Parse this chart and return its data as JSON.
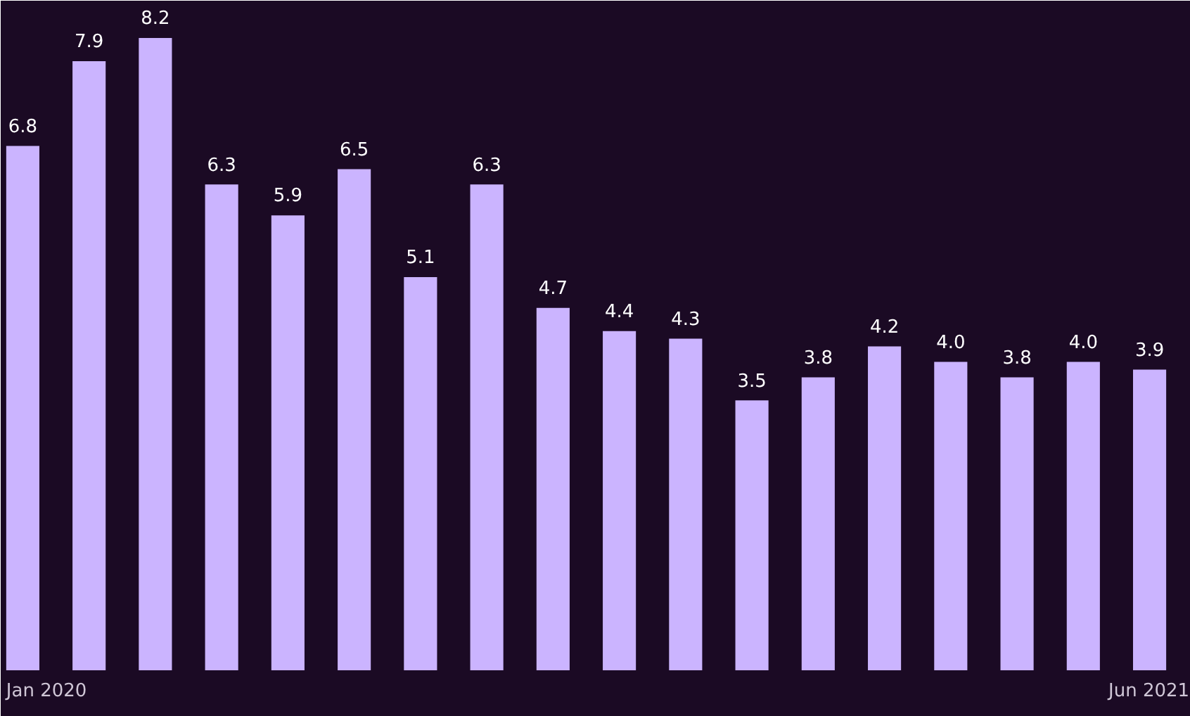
{
  "chart_data": {
    "type": "bar",
    "categories": [
      "Jan 2020",
      null,
      null,
      null,
      null,
      null,
      null,
      null,
      null,
      null,
      null,
      null,
      null,
      null,
      null,
      null,
      null,
      "Jun 2021"
    ],
    "values": [
      6.8,
      7.9,
      8.2,
      6.3,
      5.9,
      6.5,
      5.1,
      6.3,
      4.7,
      4.4,
      4.3,
      3.5,
      3.8,
      4.2,
      4.0,
      3.8,
      4.0,
      3.9
    ],
    "value_labels": [
      "6.8",
      "7.9",
      "8.2",
      "6.3",
      "5.9",
      "6.5",
      "5.1",
      "6.3",
      "4.7",
      "4.4",
      "4.3",
      "3.5",
      "3.8",
      "4.2",
      "4.0",
      "3.8",
      "4.0",
      "3.9"
    ],
    "color": "#cbb4ff"
  }
}
